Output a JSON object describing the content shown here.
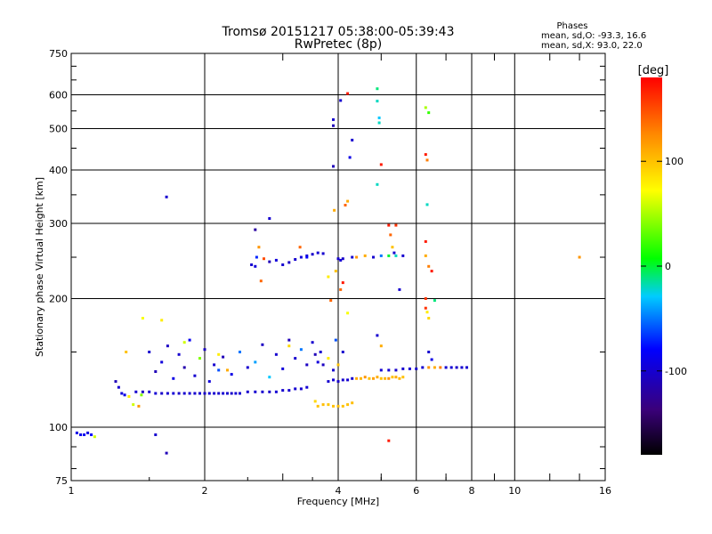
{
  "chart_data": {
    "type": "scatter",
    "title": "Tromsø 20151217 05:38:00-05:39:43",
    "subtitle": "RwPretec (8p)",
    "xlabel": "Frequency [MHz]",
    "ylabel": "Stationary phase Virtual Height [km]",
    "x_scale": "log",
    "y_scale": "log",
    "xlim": [
      1,
      16
    ],
    "ylim": [
      75,
      750
    ],
    "x_ticks": [
      1,
      2,
      4,
      6,
      8,
      10,
      16
    ],
    "x_tick_labels": [
      "1",
      "2",
      "4",
      "6",
      "8",
      "10",
      "16"
    ],
    "y_ticks": [
      75,
      100,
      200,
      300,
      400,
      500,
      600,
      750
    ],
    "y_tick_labels": [
      "75",
      "100",
      "200",
      "300",
      "400",
      "500",
      "600",
      "750"
    ],
    "grid": true,
    "phase_info": {
      "heading": "Phases",
      "line_o": "mean, sd,O: -93.3, 16.6",
      "line_x": "mean, sd,X:  93.0, 22.0"
    },
    "colorbar": {
      "label": "[deg]",
      "range": [
        -180,
        180
      ],
      "ticks": [
        100,
        0,
        -100
      ],
      "tick_labels": [
        "100",
        "0",
        "-100"
      ]
    },
    "series": [
      {
        "points": [
          [
            1.03,
            97,
            -90
          ],
          [
            1.05,
            96,
            -88
          ],
          [
            1.07,
            96,
            -85
          ],
          [
            1.09,
            97,
            -92
          ],
          [
            1.11,
            96,
            -80
          ],
          [
            1.13,
            95,
            60
          ],
          [
            1.26,
            128,
            -110
          ],
          [
            1.28,
            124,
            -100
          ],
          [
            1.3,
            120,
            -95
          ],
          [
            1.32,
            119,
            -90
          ],
          [
            1.35,
            118,
            80
          ],
          [
            1.38,
            113,
            60
          ],
          [
            1.42,
            112,
            120
          ],
          [
            1.44,
            119,
            40
          ],
          [
            1.4,
            121,
            -100
          ],
          [
            1.45,
            121,
            -105
          ],
          [
            1.5,
            121,
            -100
          ],
          [
            1.55,
            120,
            -98
          ],
          [
            1.6,
            120,
            -102
          ],
          [
            1.65,
            120,
            -100
          ],
          [
            1.7,
            120,
            -97
          ],
          [
            1.75,
            120,
            -103
          ],
          [
            1.8,
            120,
            -100
          ],
          [
            1.85,
            120,
            -99
          ],
          [
            1.9,
            120,
            -101
          ],
          [
            1.95,
            120,
            -100
          ],
          [
            2.0,
            120,
            -102
          ],
          [
            2.05,
            120,
            -98
          ],
          [
            2.1,
            120,
            -100
          ],
          [
            2.15,
            120,
            -101
          ],
          [
            2.2,
            120,
            -99
          ],
          [
            2.25,
            120,
            -100
          ],
          [
            2.3,
            120,
            -102
          ],
          [
            2.35,
            120,
            -98
          ],
          [
            2.4,
            120,
            -100
          ],
          [
            2.5,
            121,
            -101
          ],
          [
            2.6,
            121,
            -99
          ],
          [
            2.7,
            121,
            -100
          ],
          [
            2.8,
            121,
            -102
          ],
          [
            2.9,
            121,
            -98
          ],
          [
            3.0,
            122,
            -100
          ],
          [
            3.1,
            122,
            -101
          ],
          [
            3.2,
            123,
            -99
          ],
          [
            3.3,
            123,
            -100
          ],
          [
            3.4,
            124,
            -98
          ],
          [
            1.5,
            150,
            -100
          ],
          [
            1.55,
            135,
            -110
          ],
          [
            1.6,
            142,
            -95
          ],
          [
            1.65,
            155,
            -105
          ],
          [
            1.7,
            130,
            -90
          ],
          [
            1.75,
            148,
            -100
          ],
          [
            1.8,
            138,
            -115
          ],
          [
            1.85,
            160,
            -85
          ],
          [
            1.9,
            132,
            -100
          ],
          [
            1.95,
            145,
            40
          ],
          [
            2.0,
            152,
            -105
          ],
          [
            2.05,
            128,
            -95
          ],
          [
            2.1,
            140,
            -100
          ],
          [
            2.15,
            136,
            -60
          ],
          [
            2.2,
            146,
            -110
          ],
          [
            2.3,
            133,
            -90
          ],
          [
            2.4,
            150,
            -50
          ],
          [
            2.5,
            138,
            -100
          ],
          [
            2.6,
            142,
            -40
          ],
          [
            2.7,
            156,
            -105
          ],
          [
            2.8,
            131,
            -30
          ],
          [
            2.9,
            148,
            -100
          ],
          [
            3.0,
            137,
            -95
          ],
          [
            3.1,
            160,
            -110
          ],
          [
            3.2,
            145,
            -100
          ],
          [
            3.3,
            152,
            -50
          ],
          [
            3.4,
            140,
            -105
          ],
          [
            1.33,
            150,
            100
          ],
          [
            1.45,
            180,
            70
          ],
          [
            1.6,
            178,
            80
          ],
          [
            1.8,
            158,
            60
          ],
          [
            2.15,
            148,
            80
          ],
          [
            2.25,
            136,
            110
          ],
          [
            3.1,
            155,
            90
          ],
          [
            1.64,
            346,
            -100
          ],
          [
            1.55,
            96,
            -100
          ],
          [
            1.64,
            87,
            -110
          ],
          [
            2.55,
            240,
            -100
          ],
          [
            2.6,
            238,
            -95
          ],
          [
            2.62,
            250,
            -70
          ],
          [
            2.65,
            264,
            120
          ],
          [
            2.68,
            220,
            140
          ],
          [
            2.72,
            248,
            150
          ],
          [
            2.8,
            244,
            -110
          ],
          [
            2.9,
            246,
            -95
          ],
          [
            3.0,
            240,
            -100
          ],
          [
            3.1,
            243,
            -105
          ],
          [
            3.2,
            247,
            -100
          ],
          [
            3.3,
            250,
            -95
          ],
          [
            3.4,
            252,
            -100
          ],
          [
            3.5,
            254,
            -102
          ],
          [
            3.6,
            256,
            -98
          ],
          [
            3.7,
            255,
            -100
          ],
          [
            3.28,
            264,
            140
          ],
          [
            3.4,
            250,
            -80
          ],
          [
            2.6,
            290,
            -120
          ],
          [
            2.8,
            308,
            -100
          ],
          [
            3.6,
            112,
            100
          ],
          [
            3.7,
            113,
            102
          ],
          [
            3.8,
            113,
            98
          ],
          [
            3.9,
            112,
            100
          ],
          [
            4.0,
            112,
            101
          ],
          [
            4.1,
            112,
            99
          ],
          [
            4.2,
            113,
            100
          ],
          [
            4.3,
            114,
            102
          ],
          [
            3.55,
            115,
            90
          ],
          [
            3.8,
            128,
            -100
          ],
          [
            3.9,
            129,
            -98
          ],
          [
            4.0,
            128,
            -102
          ],
          [
            4.1,
            129,
            -100
          ],
          [
            4.2,
            129,
            -99
          ],
          [
            4.3,
            130,
            -101
          ],
          [
            4.4,
            130,
            110
          ],
          [
            4.5,
            130,
            105
          ],
          [
            4.6,
            131,
            120
          ],
          [
            4.7,
            130,
            100
          ],
          [
            4.8,
            130,
            115
          ],
          [
            4.9,
            131,
            110
          ],
          [
            5.0,
            130,
            100
          ],
          [
            5.1,
            130,
            105
          ],
          [
            5.2,
            130,
            120
          ],
          [
            5.3,
            131,
            100
          ],
          [
            5.4,
            131,
            110
          ],
          [
            5.5,
            130,
            105
          ],
          [
            5.6,
            131,
            100
          ],
          [
            5.0,
            136,
            -100
          ],
          [
            5.2,
            136,
            -98
          ],
          [
            5.4,
            136,
            -102
          ],
          [
            5.6,
            137,
            -100
          ],
          [
            5.8,
            137,
            -99
          ],
          [
            6.0,
            137,
            -101
          ],
          [
            6.2,
            138,
            -100
          ],
          [
            6.4,
            138,
            120
          ],
          [
            6.6,
            138,
            110
          ],
          [
            6.8,
            138,
            130
          ],
          [
            7.0,
            138,
            -100
          ],
          [
            7.2,
            138,
            -98
          ],
          [
            7.4,
            138,
            -102
          ],
          [
            7.6,
            138,
            -100
          ],
          [
            7.8,
            138,
            -99
          ],
          [
            3.5,
            158,
            -100
          ],
          [
            3.55,
            148,
            -110
          ],
          [
            3.6,
            142,
            -95
          ],
          [
            3.65,
            150,
            -100
          ],
          [
            3.7,
            140,
            -105
          ],
          [
            3.8,
            145,
            80
          ],
          [
            3.9,
            136,
            -100
          ],
          [
            4.0,
            140,
            100
          ],
          [
            4.1,
            150,
            -100
          ],
          [
            3.95,
            160,
            -60
          ],
          [
            3.9,
            508,
            -110
          ],
          [
            3.9,
            525,
            -100
          ],
          [
            4.05,
            582,
            -100
          ],
          [
            4.2,
            604,
            170
          ],
          [
            4.25,
            428,
            -90
          ],
          [
            4.3,
            470,
            -100
          ],
          [
            3.9,
            408,
            -110
          ],
          [
            3.92,
            322,
            110
          ],
          [
            4.15,
            331,
            140
          ],
          [
            4.2,
            338,
            110
          ],
          [
            4.9,
            620,
            -10
          ],
          [
            4.9,
            580,
            -20
          ],
          [
            4.95,
            516,
            -20
          ],
          [
            4.95,
            530,
            -30
          ],
          [
            5.0,
            412,
            170
          ],
          [
            4.9,
            370,
            -20
          ],
          [
            5.2,
            297,
            170
          ],
          [
            5.25,
            282,
            140
          ],
          [
            5.4,
            297,
            160
          ],
          [
            5.3,
            264,
            100
          ],
          [
            5.35,
            256,
            -100
          ],
          [
            4.0,
            248,
            -100
          ],
          [
            4.05,
            246,
            -98
          ],
          [
            4.1,
            248,
            -102
          ],
          [
            4.3,
            250,
            -100
          ],
          [
            4.4,
            250,
            120
          ],
          [
            4.6,
            252,
            110
          ],
          [
            4.8,
            250,
            -100
          ],
          [
            5.0,
            252,
            -50
          ],
          [
            5.2,
            252,
            0
          ],
          [
            5.4,
            252,
            -20
          ],
          [
            5.6,
            252,
            -100
          ],
          [
            3.85,
            198,
            140
          ],
          [
            4.05,
            210,
            140
          ],
          [
            4.1,
            218,
            170
          ],
          [
            3.8,
            225,
            80
          ],
          [
            3.95,
            232,
            100
          ],
          [
            4.2,
            185,
            70
          ],
          [
            5.5,
            210,
            -100
          ],
          [
            6.3,
            560,
            50
          ],
          [
            6.4,
            545,
            20
          ],
          [
            6.3,
            435,
            170
          ],
          [
            6.35,
            422,
            130
          ],
          [
            6.35,
            332,
            -20
          ],
          [
            6.3,
            272,
            170
          ],
          [
            6.3,
            252,
            110
          ],
          [
            6.4,
            238,
            130
          ],
          [
            6.5,
            232,
            170
          ],
          [
            6.3,
            200,
            160
          ],
          [
            6.35,
            186,
            80
          ],
          [
            6.4,
            180,
            90
          ],
          [
            6.6,
            198,
            -10
          ],
          [
            6.3,
            190,
            160
          ],
          [
            6.4,
            150,
            -100
          ],
          [
            6.5,
            144,
            -90
          ],
          [
            5.2,
            93,
            170
          ],
          [
            4.9,
            164,
            -100
          ],
          [
            5.0,
            155,
            110
          ],
          [
            14.0,
            250,
            120
          ]
        ]
      }
    ]
  }
}
